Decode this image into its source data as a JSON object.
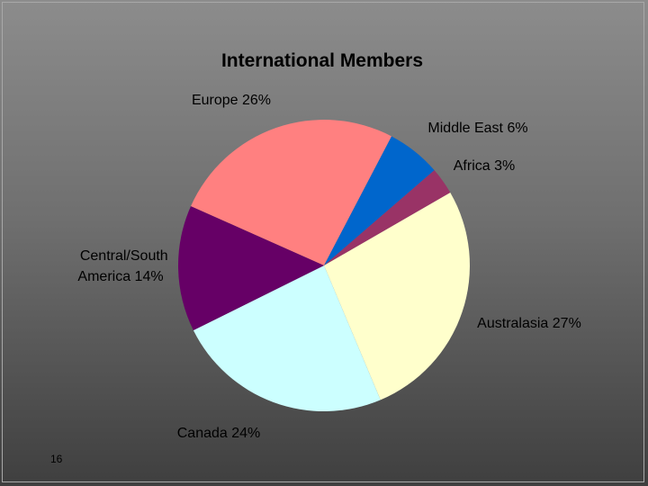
{
  "slide": {
    "page_number": "16"
  },
  "chart_data": {
    "type": "pie",
    "title": "International Members",
    "slices": [
      {
        "label": "Europe",
        "percent_label": "26%",
        "value": 26,
        "color": "#ff8080"
      },
      {
        "label": "Middle East",
        "percent_label": "6%",
        "value": 6,
        "color": "#0066cc"
      },
      {
        "label": "Africa",
        "percent_label": "3%",
        "value": 3,
        "color": "#993366"
      },
      {
        "label": "Australasia",
        "percent_label": "27%",
        "value": 27,
        "color": "#ffffcc"
      },
      {
        "label": "Canada",
        "percent_label": "24%",
        "value": 24,
        "color": "#ccffff"
      },
      {
        "label": "Central/South America",
        "percent_label": "14%",
        "value": 14,
        "color": "#660066"
      }
    ]
  }
}
